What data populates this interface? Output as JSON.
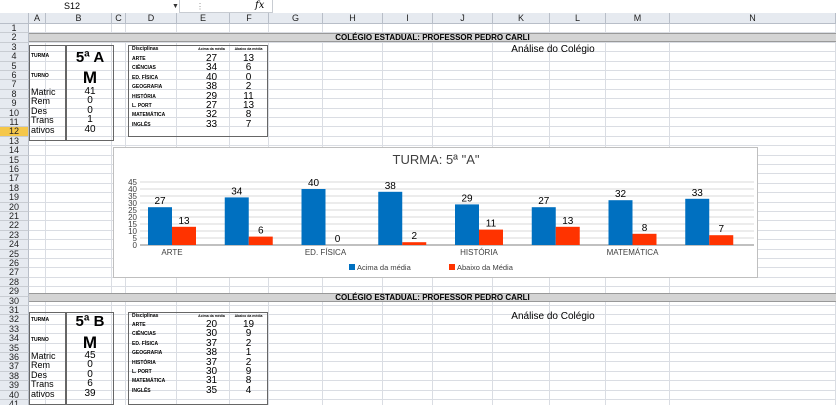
{
  "formula_bar": {
    "name_box": "S12",
    "fx": "fx",
    "dots": "⋮"
  },
  "columns": [
    "A",
    "B",
    "C",
    "D",
    "E",
    "F",
    "G",
    "H",
    "I",
    "J",
    "K",
    "L",
    "M",
    "N"
  ],
  "rows_top": [
    "1",
    "2",
    "3",
    "4",
    "5",
    "6",
    "7",
    "8",
    "9",
    "10",
    "11",
    "12",
    "13",
    "14",
    "15",
    "16",
    "17",
    "18",
    "19",
    "20",
    "21",
    "22",
    "23",
    "24",
    "25",
    "26",
    "27",
    "28",
    "29",
    "30",
    "31",
    "32",
    "33",
    "34",
    "35",
    "36",
    "37",
    "38",
    "39",
    "40",
    "41"
  ],
  "selected_row": "12",
  "section1": {
    "banner": "COLÉGIO ESTADUAL: PROFESSOR PEDRO CARLI",
    "analise": "Análise do Colégio",
    "turma_label": "TURMA",
    "turma_value": "5ª  A",
    "turno_label": "TURNO",
    "turno_value": "M",
    "stats": [
      {
        "label": "Matric",
        "value": "41"
      },
      {
        "label": "Rem",
        "value": "0"
      },
      {
        "label": "Des",
        "value": "0"
      },
      {
        "label": "Trans",
        "value": "1"
      },
      {
        "label": "ativos",
        "value": "40"
      }
    ],
    "header": {
      "disc": "Disciplinas",
      "acima": "Acima da média",
      "abaixo": "Abaixo da média"
    },
    "subjects": [
      {
        "name": "ARTE",
        "acima": "27",
        "abaixo": "13"
      },
      {
        "name": "CIÊNCIAS",
        "acima": "34",
        "abaixo": "6"
      },
      {
        "name": "ED. FÍSICA",
        "acima": "40",
        "abaixo": "0"
      },
      {
        "name": "GEOGRAFIA",
        "acima": "38",
        "abaixo": "2"
      },
      {
        "name": "HISTÓRIA",
        "acima": "29",
        "abaixo": "11"
      },
      {
        "name": "L. PORT",
        "acima": "27",
        "abaixo": "13"
      },
      {
        "name": "MATEMÁTICA",
        "acima": "32",
        "abaixo": "8"
      },
      {
        "name": "INGLÊS",
        "acima": "33",
        "abaixo": "7"
      }
    ]
  },
  "section2": {
    "banner": "COLÉGIO ESTADUAL: PROFESSOR PEDRO CARLI",
    "analise": "Análise do Colégio",
    "turma_label": "TURMA",
    "turma_value": "5ª  B",
    "turno_label": "TURNO",
    "turno_value": "M",
    "stats": [
      {
        "label": "Matric",
        "value": "45"
      },
      {
        "label": "Rem",
        "value": "0"
      },
      {
        "label": "Des",
        "value": "0"
      },
      {
        "label": "Trans",
        "value": "6"
      },
      {
        "label": "ativos",
        "value": "39"
      }
    ],
    "header": {
      "disc": "Disciplinas",
      "acima": "Acima da média",
      "abaixo": "Abaixo da média"
    },
    "subjects": [
      {
        "name": "ARTE",
        "acima": "20",
        "abaixo": "19"
      },
      {
        "name": "CIÊNCIAS",
        "acima": "30",
        "abaixo": "9"
      },
      {
        "name": "ED. FÍSICA",
        "acima": "37",
        "abaixo": "2"
      },
      {
        "name": "GEOGRAFIA",
        "acima": "38",
        "abaixo": "1"
      },
      {
        "name": "HISTÓRIA",
        "acima": "37",
        "abaixo": "2"
      },
      {
        "name": "L. PORT",
        "acima": "30",
        "abaixo": "9"
      },
      {
        "name": "MATEMÁTICA",
        "acima": "31",
        "abaixo": "8"
      },
      {
        "name": "INGLÊS",
        "acima": "35",
        "abaixo": "4"
      }
    ]
  },
  "chart_data": {
    "type": "bar",
    "title": "TURMA:  5ª  \"A\"",
    "categories": [
      "ARTE",
      "CIÊNCIAS",
      "ED. FÍSICA",
      "GEOGRAFIA",
      "HISTÓRIA",
      "L. PORT",
      "MATEMÁTICA",
      "INGLÊS"
    ],
    "x_tick_labels": [
      "ARTE",
      "ED. FÍSICA",
      "HISTÓRIA",
      "MATEMÁTICA"
    ],
    "series": [
      {
        "name": "Acima da média",
        "color": "#0070c0",
        "values": [
          27,
          34,
          40,
          38,
          29,
          27,
          32,
          33
        ]
      },
      {
        "name": "Abaixo da Média",
        "color": "#ff3300",
        "values": [
          13,
          6,
          0,
          2,
          11,
          13,
          8,
          7
        ]
      }
    ],
    "ylim": [
      0,
      45
    ],
    "yticks": [
      "0",
      "5",
      "10",
      "15",
      "20",
      "25",
      "30",
      "35",
      "40",
      "45"
    ],
    "grid": true,
    "legend": "bottom"
  }
}
